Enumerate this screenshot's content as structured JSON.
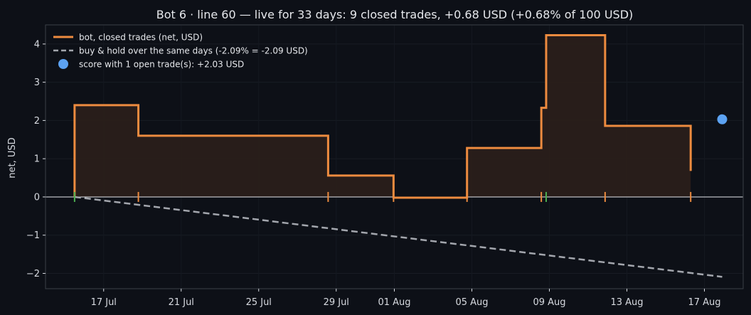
{
  "chart_data": {
    "type": "line",
    "title": "Bot 6 · line 60 — live for 33 days: 9 closed trades, +0.68 USD (+0.68% of 100 USD)",
    "xlabel": "",
    "ylabel": "net, USD",
    "x_ticks": [
      "17 Jul",
      "21 Jul",
      "25 Jul",
      "29 Jul",
      "01 Aug",
      "05 Aug",
      "09 Aug",
      "13 Aug",
      "17 Aug"
    ],
    "y_ticks": [
      "4",
      "3",
      "2",
      "1",
      "0",
      "−1",
      "−2"
    ],
    "xlim": [
      "2025-07-14",
      "2025-08-19"
    ],
    "ylim": [
      -2.4,
      4.5
    ],
    "grid": true,
    "legend_position": "top-left",
    "series": [
      {
        "name": "bot, closed trades (net, USD)",
        "style": "step",
        "color": "#ed8b3f",
        "points": [
          [
            "2025-07-15 12:00",
            0.0
          ],
          [
            "2025-07-15 12:00",
            2.4
          ],
          [
            "2025-07-18 19:00",
            2.4
          ],
          [
            "2025-07-18 19:00",
            1.6
          ],
          [
            "2025-07-28 14:00",
            1.6
          ],
          [
            "2025-07-28 14:00",
            0.56
          ],
          [
            "2025-07-31 23:00",
            0.56
          ],
          [
            "2025-07-31 23:00",
            -0.02
          ],
          [
            "2025-08-04 18:00",
            -0.02
          ],
          [
            "2025-08-04 18:00",
            1.28
          ],
          [
            "2025-08-08 14:00",
            1.28
          ],
          [
            "2025-08-08 14:00",
            2.33
          ],
          [
            "2025-08-08 20:00",
            2.33
          ],
          [
            "2025-08-08 20:00",
            4.23
          ],
          [
            "2025-08-11 21:00",
            4.23
          ],
          [
            "2025-08-11 21:00",
            1.86
          ],
          [
            "2025-08-16 07:00",
            1.86
          ],
          [
            "2025-08-16 07:00",
            0.68
          ]
        ]
      },
      {
        "name": "buy & hold over the same days (-2.09% = -2.09 USD)",
        "style": "dashed",
        "color": "#a3a6ad",
        "points": [
          [
            "2025-07-15 12:00",
            0.0
          ],
          [
            "2025-08-17 22:00",
            -2.09
          ]
        ]
      },
      {
        "name": "score with 1 open trade(s): +2.03 USD",
        "style": "point",
        "color": "#5ca2f2",
        "points": [
          [
            "2025-08-17 22:00",
            2.03
          ]
        ]
      }
    ],
    "trade_markers": [
      {
        "x": "2025-07-15 12:00",
        "type": "entry",
        "color": "#4caf50"
      },
      {
        "x": "2025-07-18 19:00",
        "type": "exit",
        "color": "#ed8b3f"
      },
      {
        "x": "2025-07-28 14:00",
        "type": "exit",
        "color": "#ed8b3f"
      },
      {
        "x": "2025-07-31 23:00",
        "type": "exit",
        "color": "#ed8b3f"
      },
      {
        "x": "2025-08-04 18:00",
        "type": "exit",
        "color": "#ed8b3f"
      },
      {
        "x": "2025-08-08 14:00",
        "type": "exit",
        "color": "#ed8b3f"
      },
      {
        "x": "2025-08-08 20:00",
        "type": "entry",
        "color": "#4caf50"
      },
      {
        "x": "2025-08-11 21:00",
        "type": "exit",
        "color": "#ed8b3f"
      },
      {
        "x": "2025-08-16 07:00",
        "type": "exit",
        "color": "#ed8b3f"
      }
    ],
    "colors": {
      "background": "#0d1017",
      "plot_background": "#0d1017",
      "axis": "#3b3f47",
      "text": "#d7dae0",
      "zero_line": "#e6e8ec",
      "fill": "#2a1f1a"
    }
  }
}
